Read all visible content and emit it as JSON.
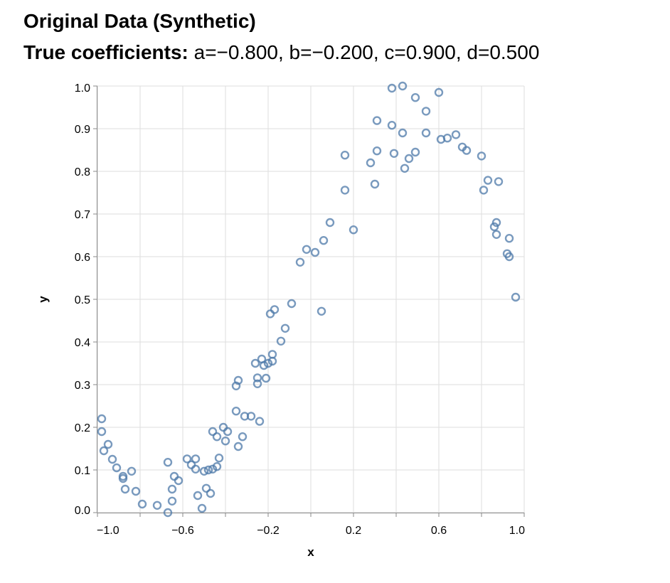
{
  "chart_data": {
    "type": "scatter",
    "title": "Original Data (Synthetic)",
    "subtitle_label": "True coefficients:",
    "subtitle_value": "a=−0.800, b=−0.200, c=0.900, d=0.500",
    "xlabel": "x",
    "ylabel": "y",
    "xlim": [
      -1.0,
      1.0
    ],
    "ylim": [
      0.0,
      1.0
    ],
    "x_ticks": [
      -1.0,
      -0.8,
      -0.6,
      -0.4,
      -0.2,
      0.0,
      0.2,
      0.4,
      0.6,
      0.8,
      1.0
    ],
    "x_tick_labels": [
      "−1.0",
      "",
      "−0.6",
      "",
      "−0.2",
      "",
      "0.2",
      "",
      "0.6",
      "",
      "1.0"
    ],
    "y_ticks": [
      0.0,
      0.1,
      0.2,
      0.3,
      0.4,
      0.5,
      0.6,
      0.7,
      0.8,
      0.9,
      1.0
    ],
    "y_tick_labels": [
      "0.0",
      "0.1",
      "0.2",
      "0.3",
      "0.4",
      "0.5",
      "0.6",
      "0.7",
      "0.8",
      "0.9",
      "1.0"
    ],
    "grid": true,
    "point_color": "#4c78a8",
    "series": [
      {
        "points": [
          [
            -0.98,
            0.22
          ],
          [
            -0.98,
            0.19
          ],
          [
            -0.97,
            0.145
          ],
          [
            -0.95,
            0.16
          ],
          [
            -0.93,
            0.125
          ],
          [
            -0.91,
            0.105
          ],
          [
            -0.88,
            0.085
          ],
          [
            -0.88,
            0.08
          ],
          [
            -0.87,
            0.055
          ],
          [
            -0.84,
            0.097
          ],
          [
            -0.82,
            0.05
          ],
          [
            -0.79,
            0.02
          ],
          [
            -0.72,
            0.017
          ],
          [
            -0.67,
            0.118
          ],
          [
            -0.67,
            0.0
          ],
          [
            -0.65,
            0.055
          ],
          [
            -0.65,
            0.027
          ],
          [
            -0.64,
            0.085
          ],
          [
            -0.62,
            0.075
          ],
          [
            -0.58,
            0.126
          ],
          [
            -0.56,
            0.112
          ],
          [
            -0.54,
            0.126
          ],
          [
            -0.54,
            0.102
          ],
          [
            -0.53,
            0.04
          ],
          [
            -0.51,
            0.01
          ],
          [
            -0.5,
            0.097
          ],
          [
            -0.49,
            0.057
          ],
          [
            -0.48,
            0.1
          ],
          [
            -0.47,
            0.045
          ],
          [
            -0.46,
            0.19
          ],
          [
            -0.46,
            0.102
          ],
          [
            -0.44,
            0.178
          ],
          [
            -0.44,
            0.108
          ],
          [
            -0.43,
            0.128
          ],
          [
            -0.41,
            0.2
          ],
          [
            -0.4,
            0.168
          ],
          [
            -0.39,
            0.19
          ],
          [
            -0.35,
            0.238
          ],
          [
            -0.35,
            0.297
          ],
          [
            -0.34,
            0.31
          ],
          [
            -0.34,
            0.155
          ],
          [
            -0.32,
            0.178
          ],
          [
            -0.31,
            0.226
          ],
          [
            -0.28,
            0.226
          ],
          [
            -0.26,
            0.35
          ],
          [
            -0.25,
            0.302
          ],
          [
            -0.25,
            0.316
          ],
          [
            -0.24,
            0.214
          ],
          [
            -0.23,
            0.36
          ],
          [
            -0.22,
            0.345
          ],
          [
            -0.21,
            0.315
          ],
          [
            -0.2,
            0.35
          ],
          [
            -0.19,
            0.466
          ],
          [
            -0.18,
            0.371
          ],
          [
            -0.18,
            0.355
          ],
          [
            -0.17,
            0.476
          ],
          [
            -0.14,
            0.402
          ],
          [
            -0.12,
            0.432
          ],
          [
            -0.09,
            0.49
          ],
          [
            -0.05,
            0.587
          ],
          [
            -0.02,
            0.617
          ],
          [
            0.02,
            0.61
          ],
          [
            0.05,
            0.472
          ],
          [
            0.06,
            0.638
          ],
          [
            0.09,
            0.68
          ],
          [
            0.16,
            0.756
          ],
          [
            0.16,
            0.838
          ],
          [
            0.2,
            0.663
          ],
          [
            0.28,
            0.82
          ],
          [
            0.3,
            0.77
          ],
          [
            0.31,
            0.848
          ],
          [
            0.31,
            0.919
          ],
          [
            0.38,
            0.995
          ],
          [
            0.38,
            0.908
          ],
          [
            0.39,
            0.842
          ],
          [
            0.43,
            1.0
          ],
          [
            0.43,
            0.89
          ],
          [
            0.44,
            0.807
          ],
          [
            0.46,
            0.83
          ],
          [
            0.49,
            0.973
          ],
          [
            0.49,
            0.845
          ],
          [
            0.54,
            0.941
          ],
          [
            0.54,
            0.89
          ],
          [
            0.6,
            0.985
          ],
          [
            0.61,
            0.875
          ],
          [
            0.64,
            0.878
          ],
          [
            0.68,
            0.886
          ],
          [
            0.71,
            0.857
          ],
          [
            0.73,
            0.849
          ],
          [
            0.8,
            0.836
          ],
          [
            0.81,
            0.756
          ],
          [
            0.83,
            0.779
          ],
          [
            0.86,
            0.67
          ],
          [
            0.87,
            0.68
          ],
          [
            0.87,
            0.652
          ],
          [
            0.88,
            0.776
          ],
          [
            0.92,
            0.607
          ],
          [
            0.93,
            0.643
          ],
          [
            0.93,
            0.6
          ],
          [
            0.96,
            0.505
          ]
        ]
      }
    ]
  }
}
